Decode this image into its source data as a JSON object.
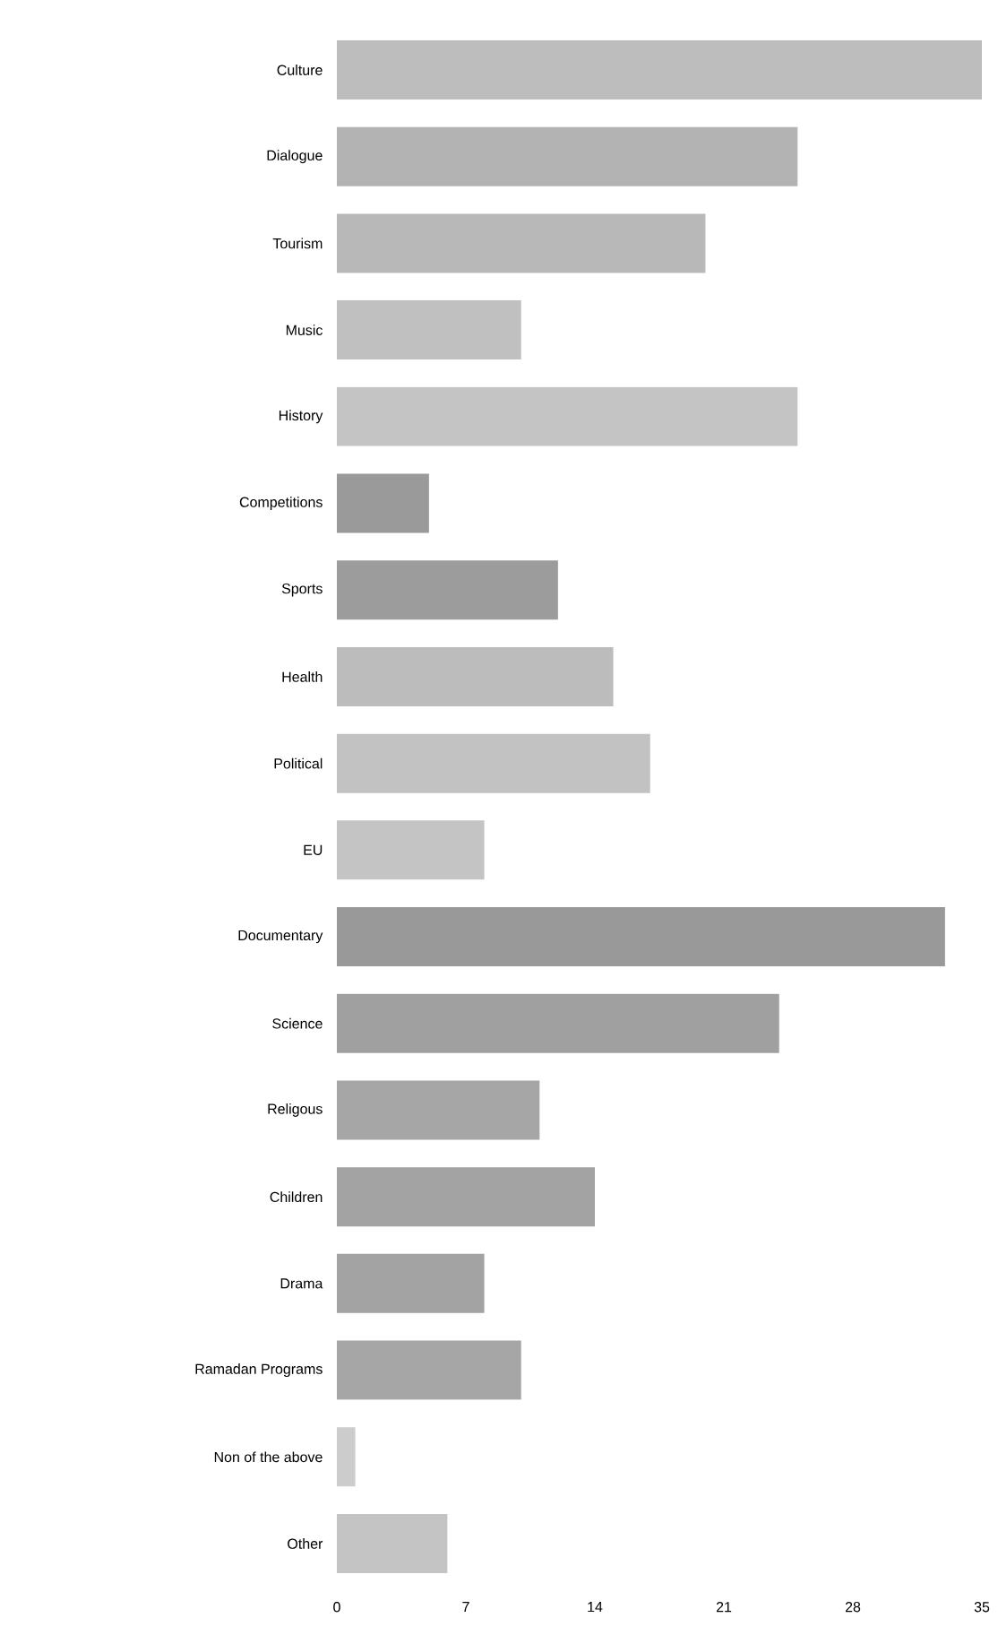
{
  "chart_data": {
    "type": "bar",
    "orientation": "horizontal",
    "categories": [
      "Culture",
      "Dialogue",
      "Tourism",
      "Music",
      "History",
      "Competitions",
      "Sports",
      "Health",
      "Political",
      "EU",
      "Documentary",
      "Science",
      "Religous",
      "Children",
      "Drama",
      "Ramadan Programs",
      "Non of the above",
      "Other"
    ],
    "values": [
      35,
      25,
      20,
      10,
      25,
      5,
      12,
      15,
      17,
      8,
      33,
      24,
      11,
      14,
      8,
      10,
      1,
      6
    ],
    "colors": [
      "#bdbdbd",
      "#b3b3b3",
      "#b8b8b8",
      "#c0c0c0",
      "#c4c4c4",
      "#9a9a9a",
      "#9c9c9c",
      "#bcbcbc",
      "#c2c2c2",
      "#c4c4c4",
      "#999999",
      "#a0a0a0",
      "#a6a6a6",
      "#a3a3a3",
      "#a3a3a3",
      "#a6a6a6",
      "#cccccc",
      "#c4c4c4"
    ],
    "xlim": [
      0,
      35
    ],
    "xticks": [
      0,
      7,
      14,
      21,
      28,
      35
    ]
  }
}
